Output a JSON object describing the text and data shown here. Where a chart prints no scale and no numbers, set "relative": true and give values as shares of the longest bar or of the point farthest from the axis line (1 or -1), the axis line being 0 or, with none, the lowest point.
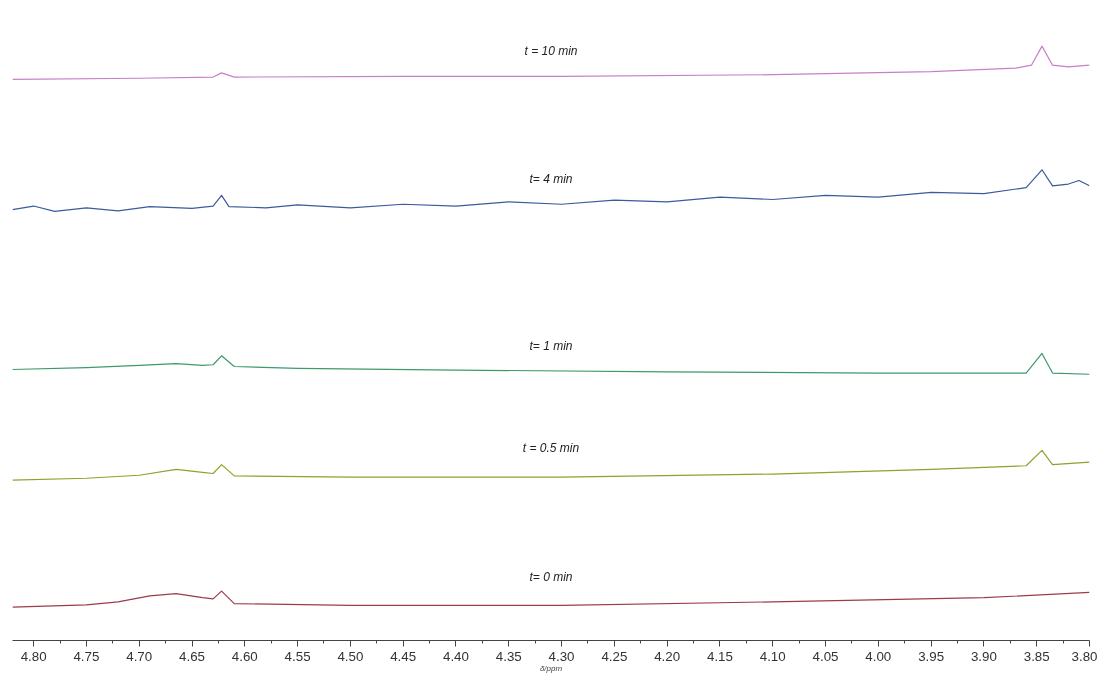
{
  "chart_data": {
    "type": "line",
    "relative": true,
    "xlabel": "δ/ppm",
    "xlim": [
      4.82,
      3.8
    ],
    "xticks": [
      {
        "value": 4.8,
        "label": "4.80"
      },
      {
        "value": 4.775,
        "label": null
      },
      {
        "value": 4.75,
        "label": "4.75"
      },
      {
        "value": 4.725,
        "label": null
      },
      {
        "value": 4.7,
        "label": "4.70"
      },
      {
        "value": 4.675,
        "label": null
      },
      {
        "value": 4.65,
        "label": "4.65"
      },
      {
        "value": 4.625,
        "label": null
      },
      {
        "value": 4.6,
        "label": "4.60"
      },
      {
        "value": 4.575,
        "label": null
      },
      {
        "value": 4.55,
        "label": "4.55"
      },
      {
        "value": 4.525,
        "label": null
      },
      {
        "value": 4.5,
        "label": "4.50"
      },
      {
        "value": 4.475,
        "label": null
      },
      {
        "value": 4.45,
        "label": "4.45"
      },
      {
        "value": 4.425,
        "label": null
      },
      {
        "value": 4.4,
        "label": "4.40"
      },
      {
        "value": 4.375,
        "label": null
      },
      {
        "value": 4.35,
        "label": "4.35"
      },
      {
        "value": 4.325,
        "label": null
      },
      {
        "value": 4.3,
        "label": "4.30"
      },
      {
        "value": 4.275,
        "label": null
      },
      {
        "value": 4.25,
        "label": "4.25"
      },
      {
        "value": 4.225,
        "label": null
      },
      {
        "value": 4.2,
        "label": "4.20"
      },
      {
        "value": 4.175,
        "label": null
      },
      {
        "value": 4.15,
        "label": "4.15"
      },
      {
        "value": 4.125,
        "label": null
      },
      {
        "value": 4.1,
        "label": "4.10"
      },
      {
        "value": 4.075,
        "label": null
      },
      {
        "value": 4.05,
        "label": "4.05"
      },
      {
        "value": 4.025,
        "label": null
      },
      {
        "value": 4.0,
        "label": "4.00"
      },
      {
        "value": 3.975,
        "label": null
      },
      {
        "value": 3.95,
        "label": "3.95"
      },
      {
        "value": 3.925,
        "label": null
      },
      {
        "value": 3.9,
        "label": "3.90"
      },
      {
        "value": 3.875,
        "label": null
      },
      {
        "value": 3.85,
        "label": "3.85"
      },
      {
        "value": 3.825,
        "label": null
      },
      {
        "value": 3.8,
        "label": "3.80"
      }
    ],
    "grid": false,
    "legend": false,
    "tick_labels": "x",
    "line_style": "solid",
    "marker": "none",
    "series": [
      {
        "name": "t = 10 min",
        "color": "#c77fc7",
        "x": [
          4.82,
          4.7,
          4.63,
          4.622,
          4.61,
          4.45,
          4.3,
          4.1,
          3.95,
          3.87,
          3.855,
          3.845,
          3.835,
          3.82,
          3.8
        ],
        "values": [
          0.944,
          0.946,
          0.948,
          0.955,
          0.948,
          0.949,
          0.949,
          0.952,
          0.957,
          0.963,
          0.968,
          1.0,
          0.968,
          0.965,
          0.968
        ]
      },
      {
        "name": "t= 4 min",
        "color": "#3b5b9a",
        "x": [
          4.82,
          4.8,
          4.78,
          4.75,
          4.72,
          4.69,
          4.65,
          4.63,
          4.622,
          4.615,
          4.58,
          4.55,
          4.5,
          4.45,
          4.4,
          4.35,
          4.3,
          4.25,
          4.2,
          4.15,
          4.1,
          4.05,
          4.0,
          3.95,
          3.9,
          3.86,
          3.845,
          3.835,
          3.82,
          3.81,
          3.8
        ],
        "values": [
          0.725,
          0.731,
          0.722,
          0.728,
          0.723,
          0.73,
          0.727,
          0.731,
          0.749,
          0.73,
          0.728,
          0.733,
          0.728,
          0.734,
          0.731,
          0.738,
          0.734,
          0.741,
          0.738,
          0.746,
          0.742,
          0.749,
          0.746,
          0.754,
          0.752,
          0.762,
          0.792,
          0.765,
          0.768,
          0.774,
          0.765
        ]
      },
      {
        "name": "t= 1 min",
        "color": "#3d9a6c",
        "x": [
          4.82,
          4.75,
          4.7,
          4.665,
          4.64,
          4.63,
          4.622,
          4.61,
          4.55,
          4.4,
          4.2,
          4.0,
          3.86,
          3.845,
          3.835,
          3.8
        ],
        "values": [
          0.456,
          0.459,
          0.463,
          0.466,
          0.463,
          0.464,
          0.479,
          0.461,
          0.458,
          0.455,
          0.452,
          0.45,
          0.45,
          0.483,
          0.45,
          0.448
        ]
      },
      {
        "name": "t = 0.5 min",
        "color": "#8fa22a",
        "x": [
          4.82,
          4.75,
          4.7,
          4.665,
          4.64,
          4.63,
          4.622,
          4.61,
          4.5,
          4.3,
          4.1,
          3.95,
          3.86,
          3.845,
          3.835,
          3.8
        ],
        "values": [
          0.27,
          0.273,
          0.278,
          0.288,
          0.283,
          0.281,
          0.296,
          0.277,
          0.275,
          0.275,
          0.28,
          0.288,
          0.294,
          0.32,
          0.296,
          0.3
        ]
      },
      {
        "name": "t= 0 min",
        "color": "#9b3c4c",
        "x": [
          4.82,
          4.75,
          4.72,
          4.69,
          4.665,
          4.64,
          4.63,
          4.622,
          4.61,
          4.5,
          4.3,
          4.1,
          3.9,
          3.8
        ],
        "values": [
          0.056,
          0.06,
          0.065,
          0.075,
          0.079,
          0.072,
          0.07,
          0.083,
          0.062,
          0.059,
          0.059,
          0.065,
          0.072,
          0.081
        ]
      }
    ]
  }
}
